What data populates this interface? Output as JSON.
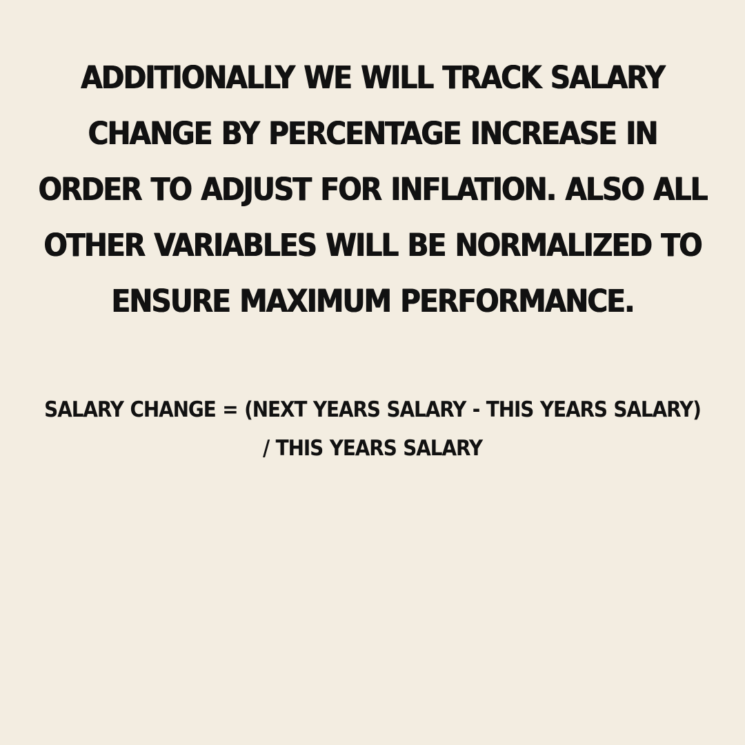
{
  "slide": {
    "background_color": "#f3ede1",
    "text_color": "#111111",
    "main_text_lines": [
      "Additionally we will track salary",
      "change by percentage increase in",
      "order to adjust for inflation. Also all",
      "other variables will be normalized to",
      "ensure maximum performance."
    ],
    "formula_lines": [
      "Salary Change = (Next Years Salary - This Years Salary)",
      "/ This Years Salary"
    ]
  }
}
